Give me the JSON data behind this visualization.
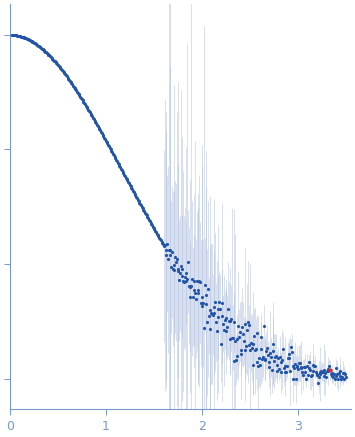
{
  "bg_color": "#ffffff",
  "dot_color": "#2255aa",
  "error_color": "#aabbdd",
  "outlier_color": "#ee2222",
  "tick_color": "#7799cc",
  "axis_color": "#7799cc",
  "tick_label_color": "#7799cc",
  "dot_size": 2.5,
  "error_alpha": 0.55,
  "xlim": [
    0,
    3.55
  ],
  "xticks": [
    0,
    1,
    2,
    3
  ],
  "q_min": 0.02,
  "q_max": 3.5,
  "n_points": 420,
  "noise_onset": 1.6,
  "seed": 7
}
